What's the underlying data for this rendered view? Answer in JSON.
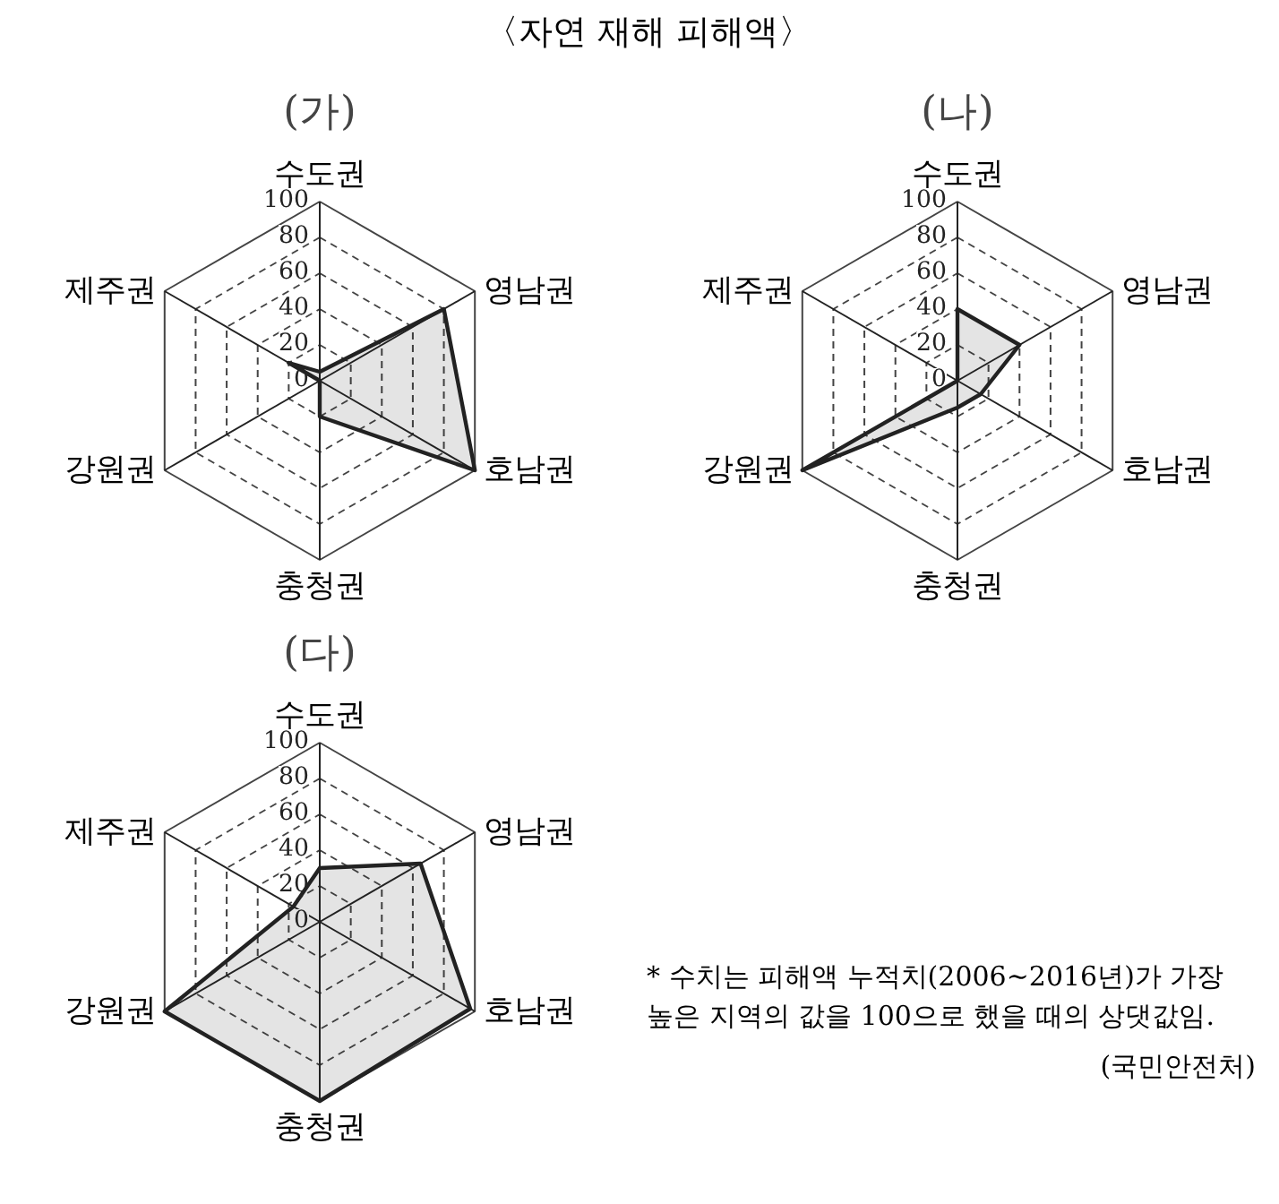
{
  "chart_data": [
    {
      "type": "radar",
      "title": "〈자연 재해 피해액〉",
      "subtitle": "(가)",
      "categories": [
        "수도권",
        "영남권",
        "호남권",
        "충청권",
        "강원권",
        "제주권"
      ],
      "ylim": [
        0,
        100
      ],
      "yticks": [
        0,
        20,
        40,
        60,
        80,
        100
      ],
      "grid": true,
      "marker": "none",
      "line_style": "solid",
      "series": [
        {
          "color": "#222222",
          "values": [
            5,
            80,
            100,
            20,
            0,
            20
          ]
        }
      ]
    },
    {
      "type": "radar",
      "title": "(나)",
      "categories": [
        "수도권",
        "영남권",
        "호남권",
        "충청권",
        "강원권",
        "제주권"
      ],
      "ylim": [
        0,
        100
      ],
      "yticks": [
        0,
        20,
        40,
        60,
        80,
        100
      ],
      "grid": true,
      "marker": "none",
      "line_style": "solid",
      "series": [
        {
          "color": "#222222",
          "values": [
            40,
            40,
            15,
            15,
            100,
            0
          ]
        }
      ]
    },
    {
      "type": "radar",
      "title": "(다)",
      "categories": [
        "수도권",
        "영남권",
        "호남권",
        "충청권",
        "강원권",
        "제주권"
      ],
      "ylim": [
        0,
        100
      ],
      "yticks": [
        0,
        20,
        40,
        60,
        80,
        100
      ],
      "grid": true,
      "marker": "none",
      "line_style": "solid",
      "series": [
        {
          "color": "#222222",
          "values": [
            30,
            65,
            97,
            100,
            100,
            17
          ]
        }
      ],
      "annotations": [
        "* 수치는 피해액 누적치(2006~2016년)가 가장 높은 지역의 값을 100으로 했을 때의 상댓값임.",
        "(국민안전처)"
      ]
    }
  ]
}
